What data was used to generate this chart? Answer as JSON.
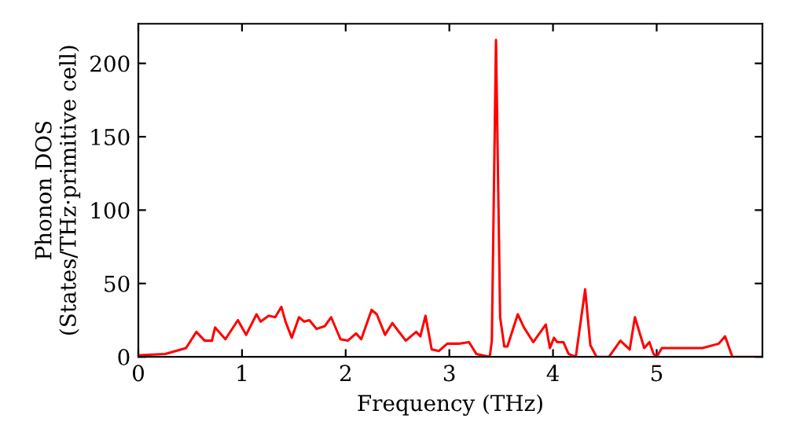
{
  "chart_data": {
    "type": "line",
    "xlabel": "Frequency (THz)",
    "ylabel": "Phonon DOS\n(States/THz·primitive cell)",
    "xlim": [
      0,
      6.02
    ],
    "ylim": [
      0,
      227
    ],
    "xticks": [
      0,
      1,
      2,
      3,
      4,
      5
    ],
    "yticks": [
      0,
      50,
      100,
      150,
      200
    ],
    "grid": false,
    "legend": false,
    "marker": "none",
    "line_style": "solid",
    "series": [
      {
        "color": "#ff0000",
        "x": [
          0,
          0.26,
          0.46,
          0.56,
          0.64,
          0.71,
          0.74,
          0.84,
          0.96,
          1.04,
          1.14,
          1.18,
          1.26,
          1.32,
          1.38,
          1.42,
          1.48,
          1.55,
          1.6,
          1.65,
          1.72,
          1.8,
          1.86,
          1.95,
          2.02,
          2.1,
          2.15,
          2.25,
          2.3,
          2.38,
          2.45,
          2.58,
          2.68,
          2.72,
          2.77,
          2.83,
          2.9,
          2.98,
          3.1,
          3.19,
          3.26,
          3.39,
          3.41,
          3.45,
          3.49,
          3.53,
          3.56,
          3.66,
          3.72,
          3.81,
          3.93,
          3.97,
          4.01,
          4.04,
          4.1,
          4.15,
          4.22,
          4.31,
          4.36,
          4.42,
          4.54,
          4.65,
          4.74,
          4.79,
          4.88,
          4.93,
          4.97,
          5.0,
          5.05,
          5.44,
          5.6,
          5.66,
          5.73,
          6.0
        ],
        "values": [
          1,
          2,
          6,
          17,
          11,
          11,
          20,
          12,
          25,
          15,
          29,
          24,
          28,
          27,
          34,
          24,
          13,
          27,
          24,
          25,
          19,
          21,
          27,
          12,
          11,
          16,
          12,
          32,
          29,
          15,
          23,
          11,
          17,
          14,
          28,
          5,
          4,
          9,
          9,
          10,
          2,
          0,
          11,
          216,
          27,
          7,
          7,
          29,
          20,
          10,
          22,
          6,
          13,
          10,
          10,
          2,
          0,
          46,
          8,
          0,
          0,
          11,
          5,
          27,
          6,
          10,
          2,
          0,
          6,
          6,
          9,
          14,
          0,
          0
        ]
      }
    ]
  }
}
